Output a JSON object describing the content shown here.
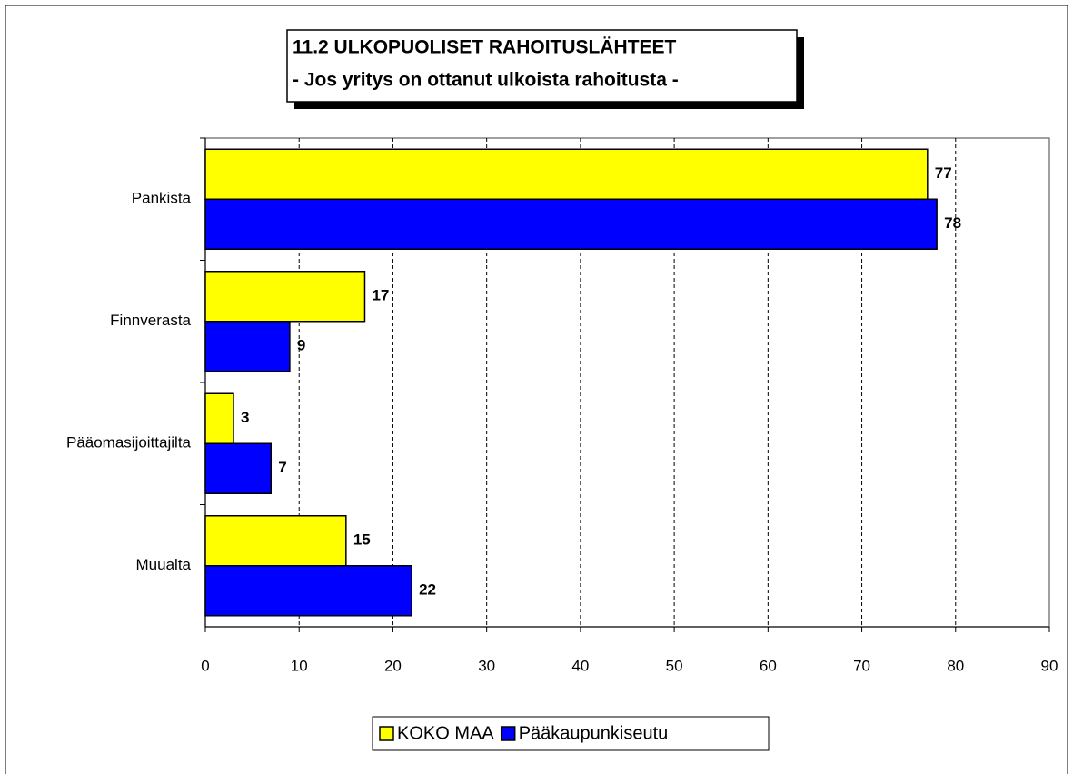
{
  "chart_data": {
    "type": "bar",
    "orientation": "horizontal",
    "title": "11.2 ULKOPUOLISET RAHOITUSLÄHTEET",
    "subtitle": "- Jos yritys on ottanut ulkoista rahoitusta -",
    "categories": [
      "Pankista",
      "Finnverasta",
      "Pääomasijoittajilta",
      "Muualta"
    ],
    "series": [
      {
        "name": "KOKO MAA",
        "color": "#ffff00",
        "values": [
          77,
          17,
          3,
          15
        ]
      },
      {
        "name": "Pääkaupunkiseutu",
        "color": "#0000ff",
        "values": [
          78,
          9,
          7,
          22
        ]
      }
    ],
    "xlim": [
      0,
      90
    ],
    "xticks": [
      0,
      10,
      20,
      30,
      40,
      50,
      60,
      70,
      80,
      90
    ],
    "grid": true,
    "legend": "bottom"
  }
}
